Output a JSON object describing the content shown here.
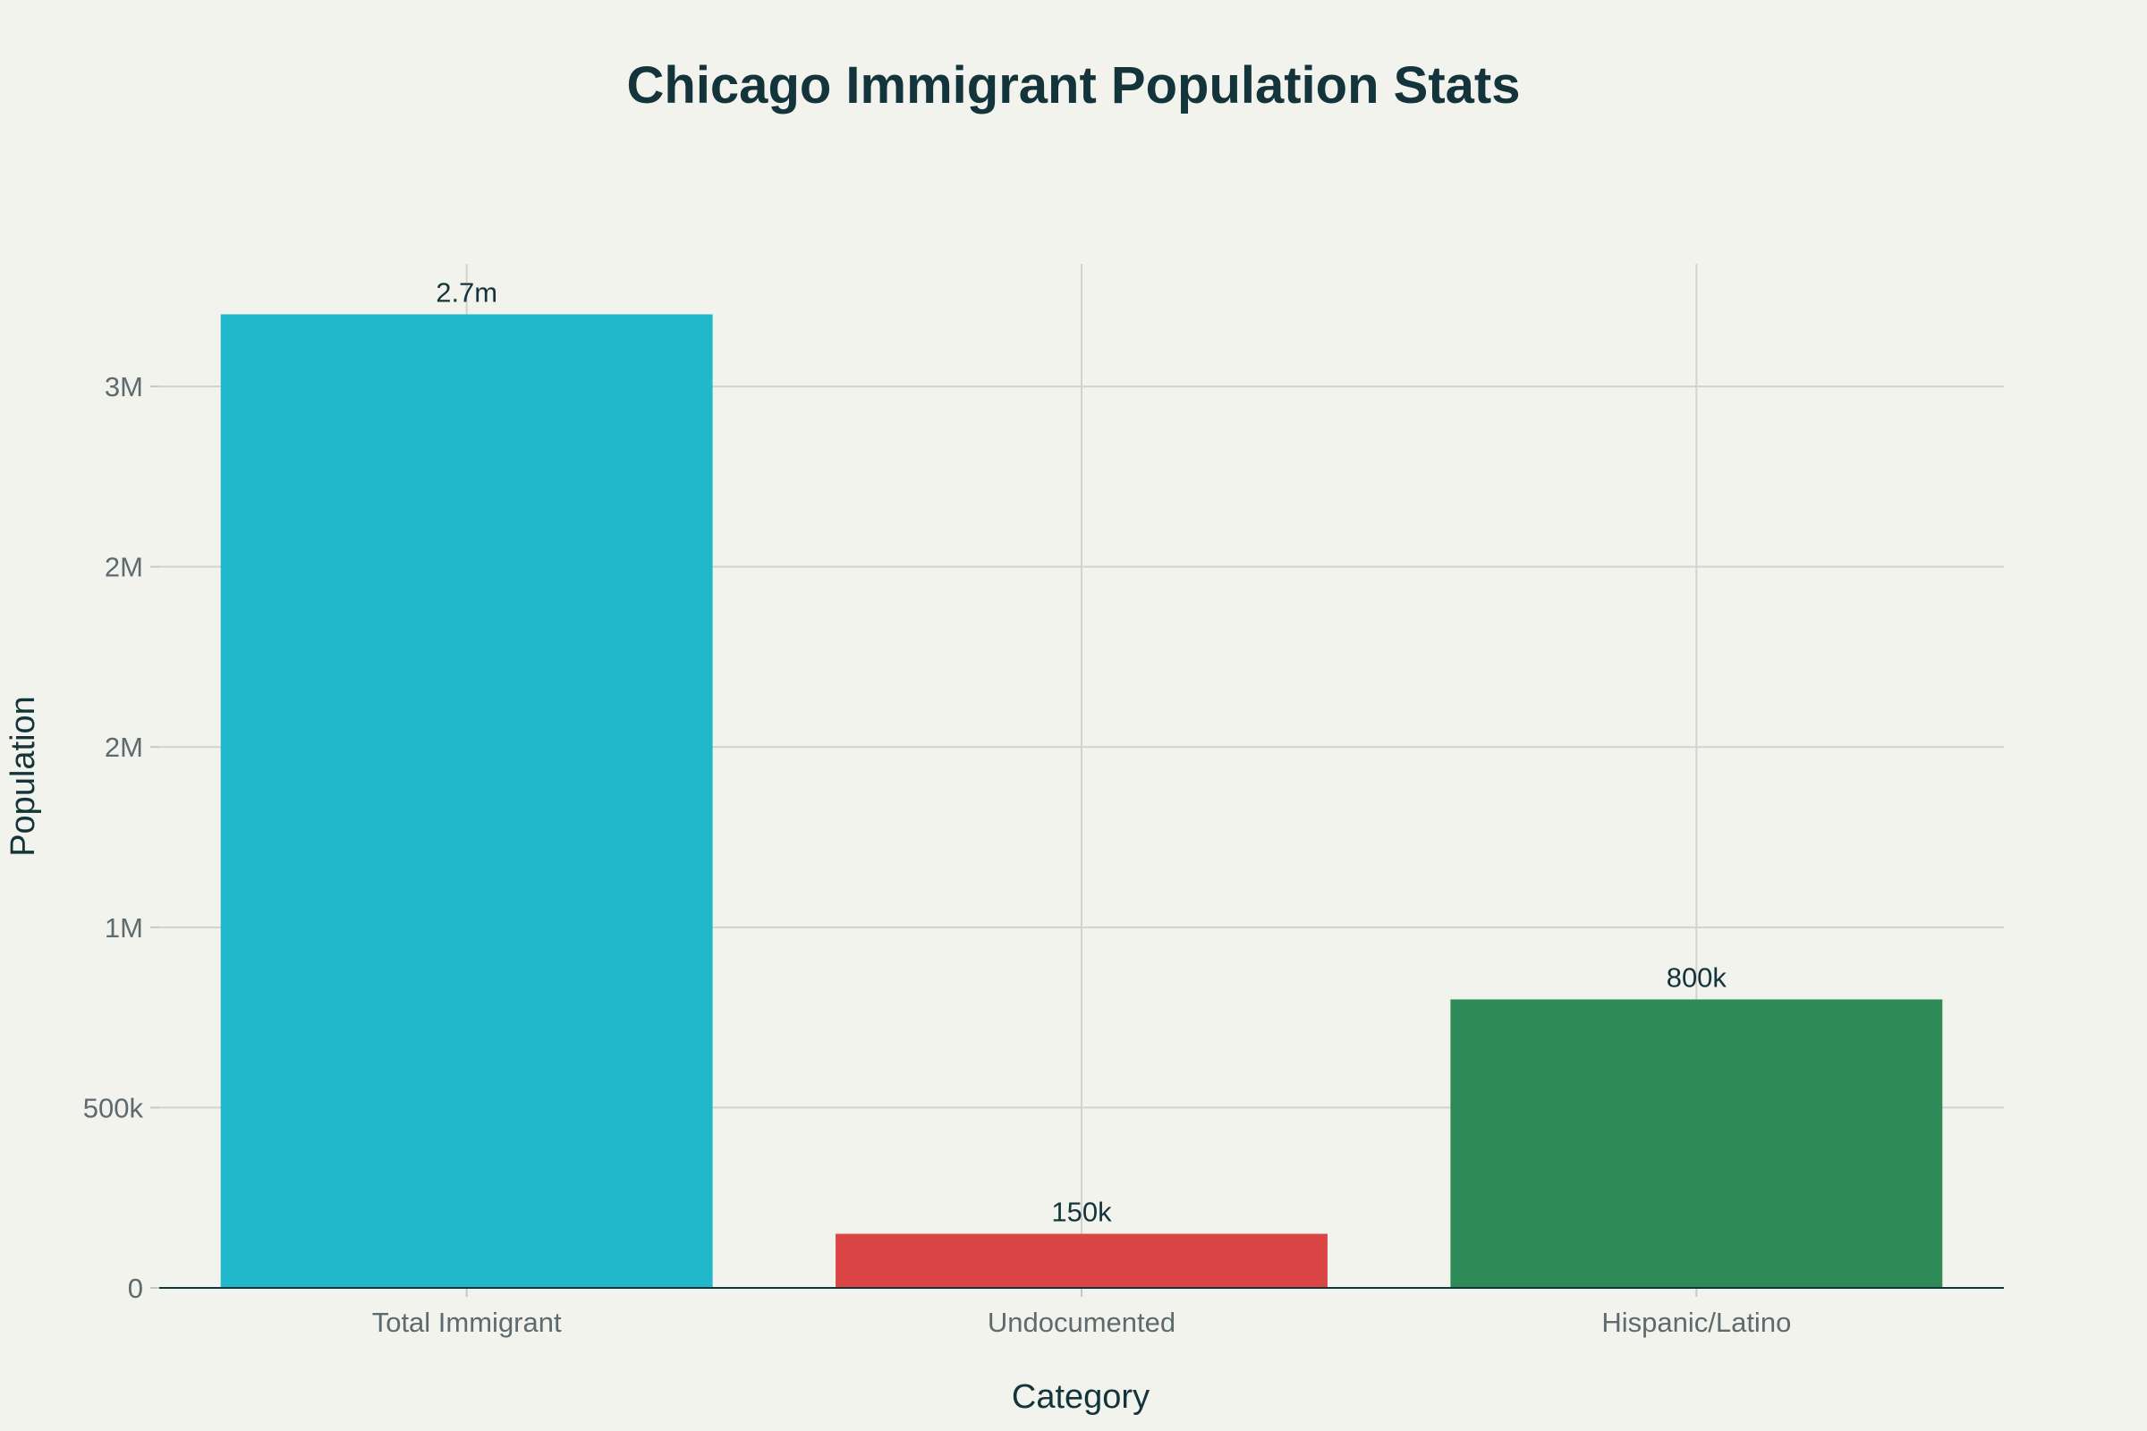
{
  "chart_data": {
    "type": "bar",
    "title": "Chicago Immigrant Population Stats",
    "xlabel": "Category",
    "ylabel": "Population",
    "categories": [
      "Total Immigrant",
      "Undocumented",
      "Hispanic/Latino"
    ],
    "values": [
      2700000,
      150000,
      800000
    ],
    "data_labels": [
      "2.7m",
      "150k",
      "800k"
    ],
    "colors": [
      "#21b8cc",
      "#db4545",
      "#2e8b57"
    ],
    "y_ticks": [
      {
        "value": 0,
        "label": "0"
      },
      {
        "value": 500000,
        "label": "500k"
      },
      {
        "value": 1000000,
        "label": "1M"
      },
      {
        "value": 1500000,
        "label": "2M"
      },
      {
        "value": 2000000,
        "label": "2M"
      },
      {
        "value": 2500000,
        "label": "3M"
      }
    ],
    "ylim": [
      0,
      2840000
    ],
    "grid": true,
    "legend": false
  },
  "colors": {
    "background": "#f3f3ee",
    "text": "#13343b",
    "tick_text": "#5d6a6e",
    "grid": "#d2d3cf"
  }
}
